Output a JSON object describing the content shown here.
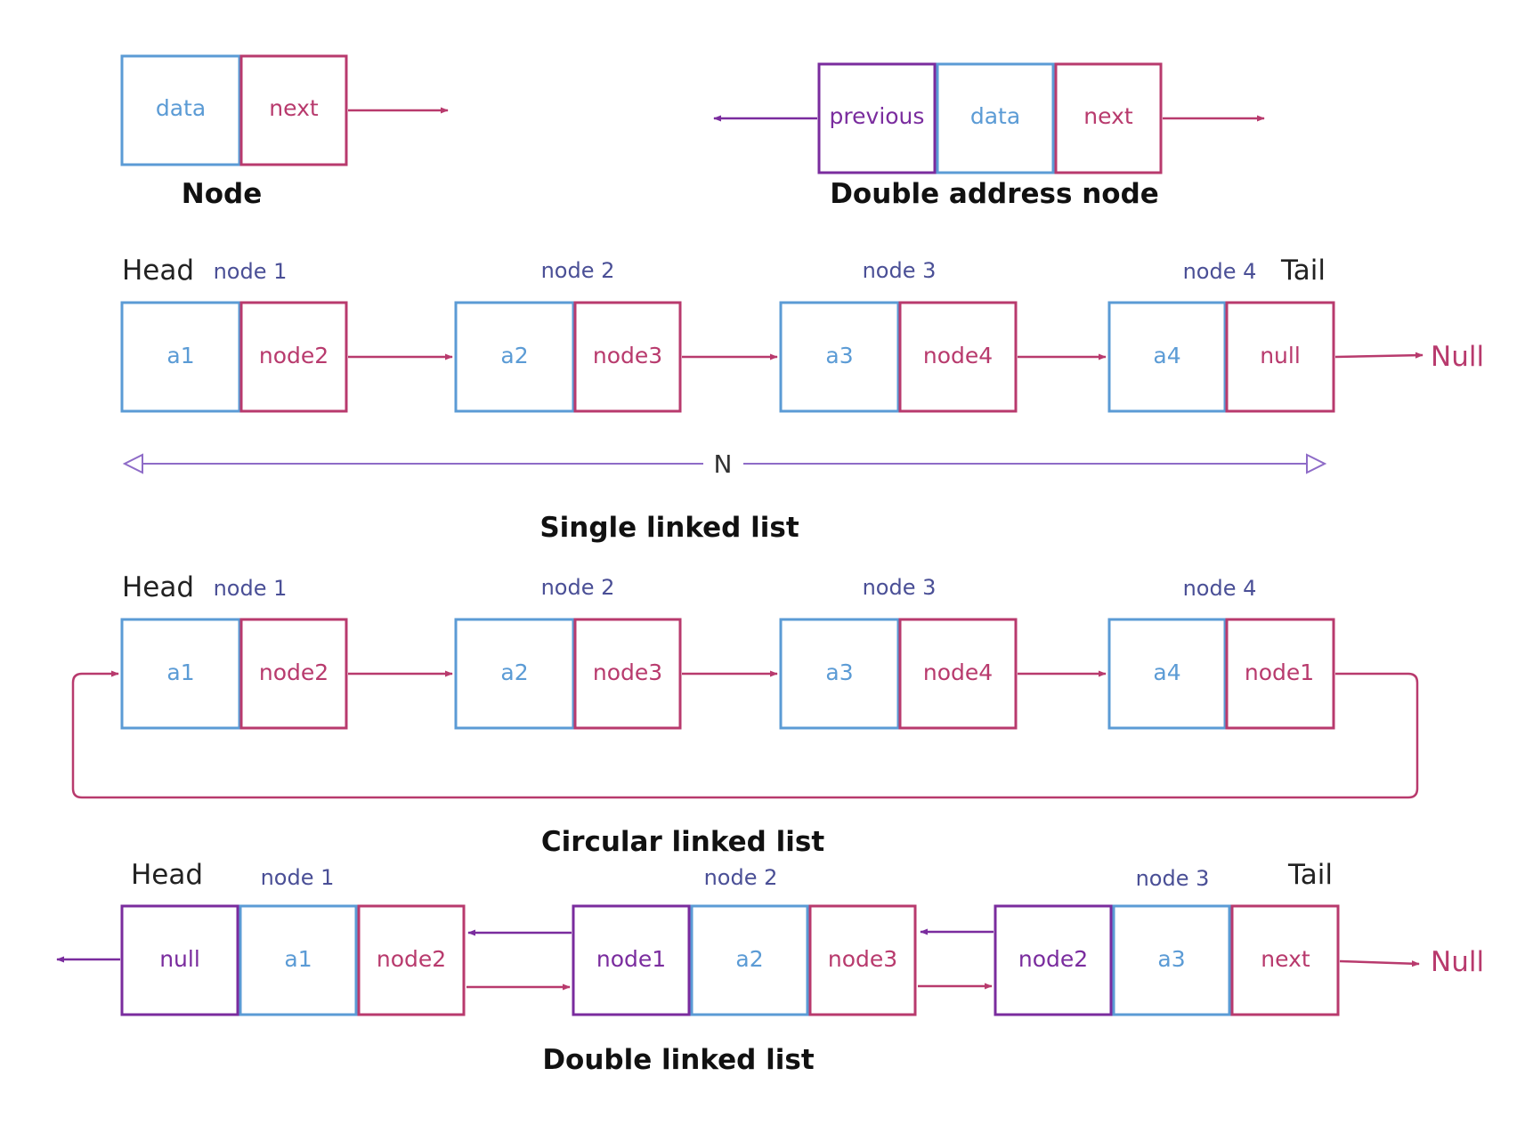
{
  "legend": {
    "node": {
      "data": "data",
      "next": "next",
      "caption": "Node"
    },
    "double_node": {
      "previous": "previous",
      "data": "data",
      "next": "next",
      "caption": "Double address node"
    }
  },
  "single": {
    "head": "Head",
    "tail": "Tail",
    "caption": "Single linked list",
    "length_label": "N",
    "null_label": "Null",
    "nodes": [
      {
        "label": "node 1",
        "value": "a1",
        "pointer": "node2"
      },
      {
        "label": "node 2",
        "value": "a2",
        "pointer": "node3"
      },
      {
        "label": "node 3",
        "value": "a3",
        "pointer": "node4"
      },
      {
        "label": "node 4",
        "value": "a4",
        "pointer": "null"
      }
    ]
  },
  "circular": {
    "head": "Head",
    "caption": "Circular linked list",
    "nodes": [
      {
        "label": "node 1",
        "value": "a1",
        "pointer": "node2"
      },
      {
        "label": "node 2",
        "value": "a2",
        "pointer": "node3"
      },
      {
        "label": "node 3",
        "value": "a3",
        "pointer": "node4"
      },
      {
        "label": "node 4",
        "value": "a4",
        "pointer": "node1"
      }
    ]
  },
  "double": {
    "head": "Head",
    "tail": "Tail",
    "caption": "Double linked list",
    "null_label": "Null",
    "nodes": [
      {
        "label": "node 1",
        "prev": "null",
        "value": "a1",
        "next": "node2"
      },
      {
        "label": "node 2",
        "prev": "node1",
        "value": "a2",
        "next": "node3"
      },
      {
        "label": "node 3",
        "prev": "node2",
        "value": "a3",
        "next": "next"
      }
    ]
  },
  "colors": {
    "data_border": "#5b9bd5",
    "pointer_border": "#b83a6d",
    "previous_border": "#7a2c9e",
    "node_label": "#4a4f96"
  }
}
